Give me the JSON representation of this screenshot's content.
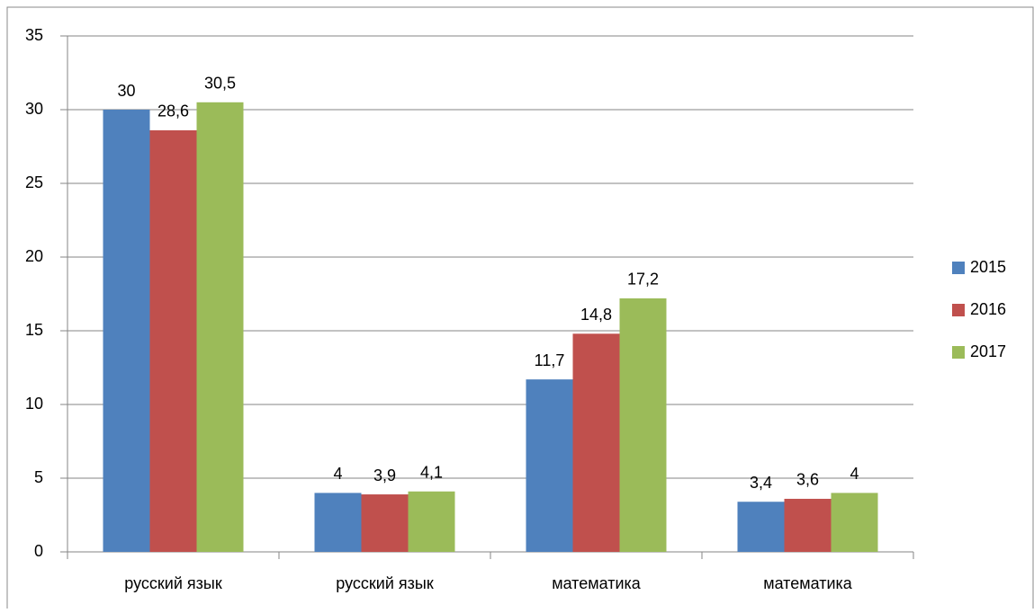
{
  "chart_data": {
    "type": "bar",
    "categories": [
      "русский язык",
      "русский язык",
      "математика",
      "математика"
    ],
    "series": [
      {
        "name": "2015",
        "color": "#4f81bd",
        "values": [
          30,
          4,
          11.7,
          3.4
        ],
        "value_labels": [
          "30",
          "4",
          "11,7",
          "3,4"
        ]
      },
      {
        "name": "2016",
        "color": "#c0504d",
        "values": [
          28.6,
          3.9,
          14.8,
          3.6
        ],
        "value_labels": [
          "28,6",
          "3,9",
          "14,8",
          "3,6"
        ]
      },
      {
        "name": "2017",
        "color": "#9bbb59",
        "values": [
          30.5,
          4.1,
          17.2,
          4
        ],
        "value_labels": [
          "30,5",
          "4,1",
          "17,2",
          "4"
        ]
      }
    ],
    "ylim": [
      0,
      35
    ],
    "yticks": [
      0,
      5,
      10,
      15,
      20,
      25,
      30,
      35
    ],
    "grid": true,
    "legend": "right"
  }
}
